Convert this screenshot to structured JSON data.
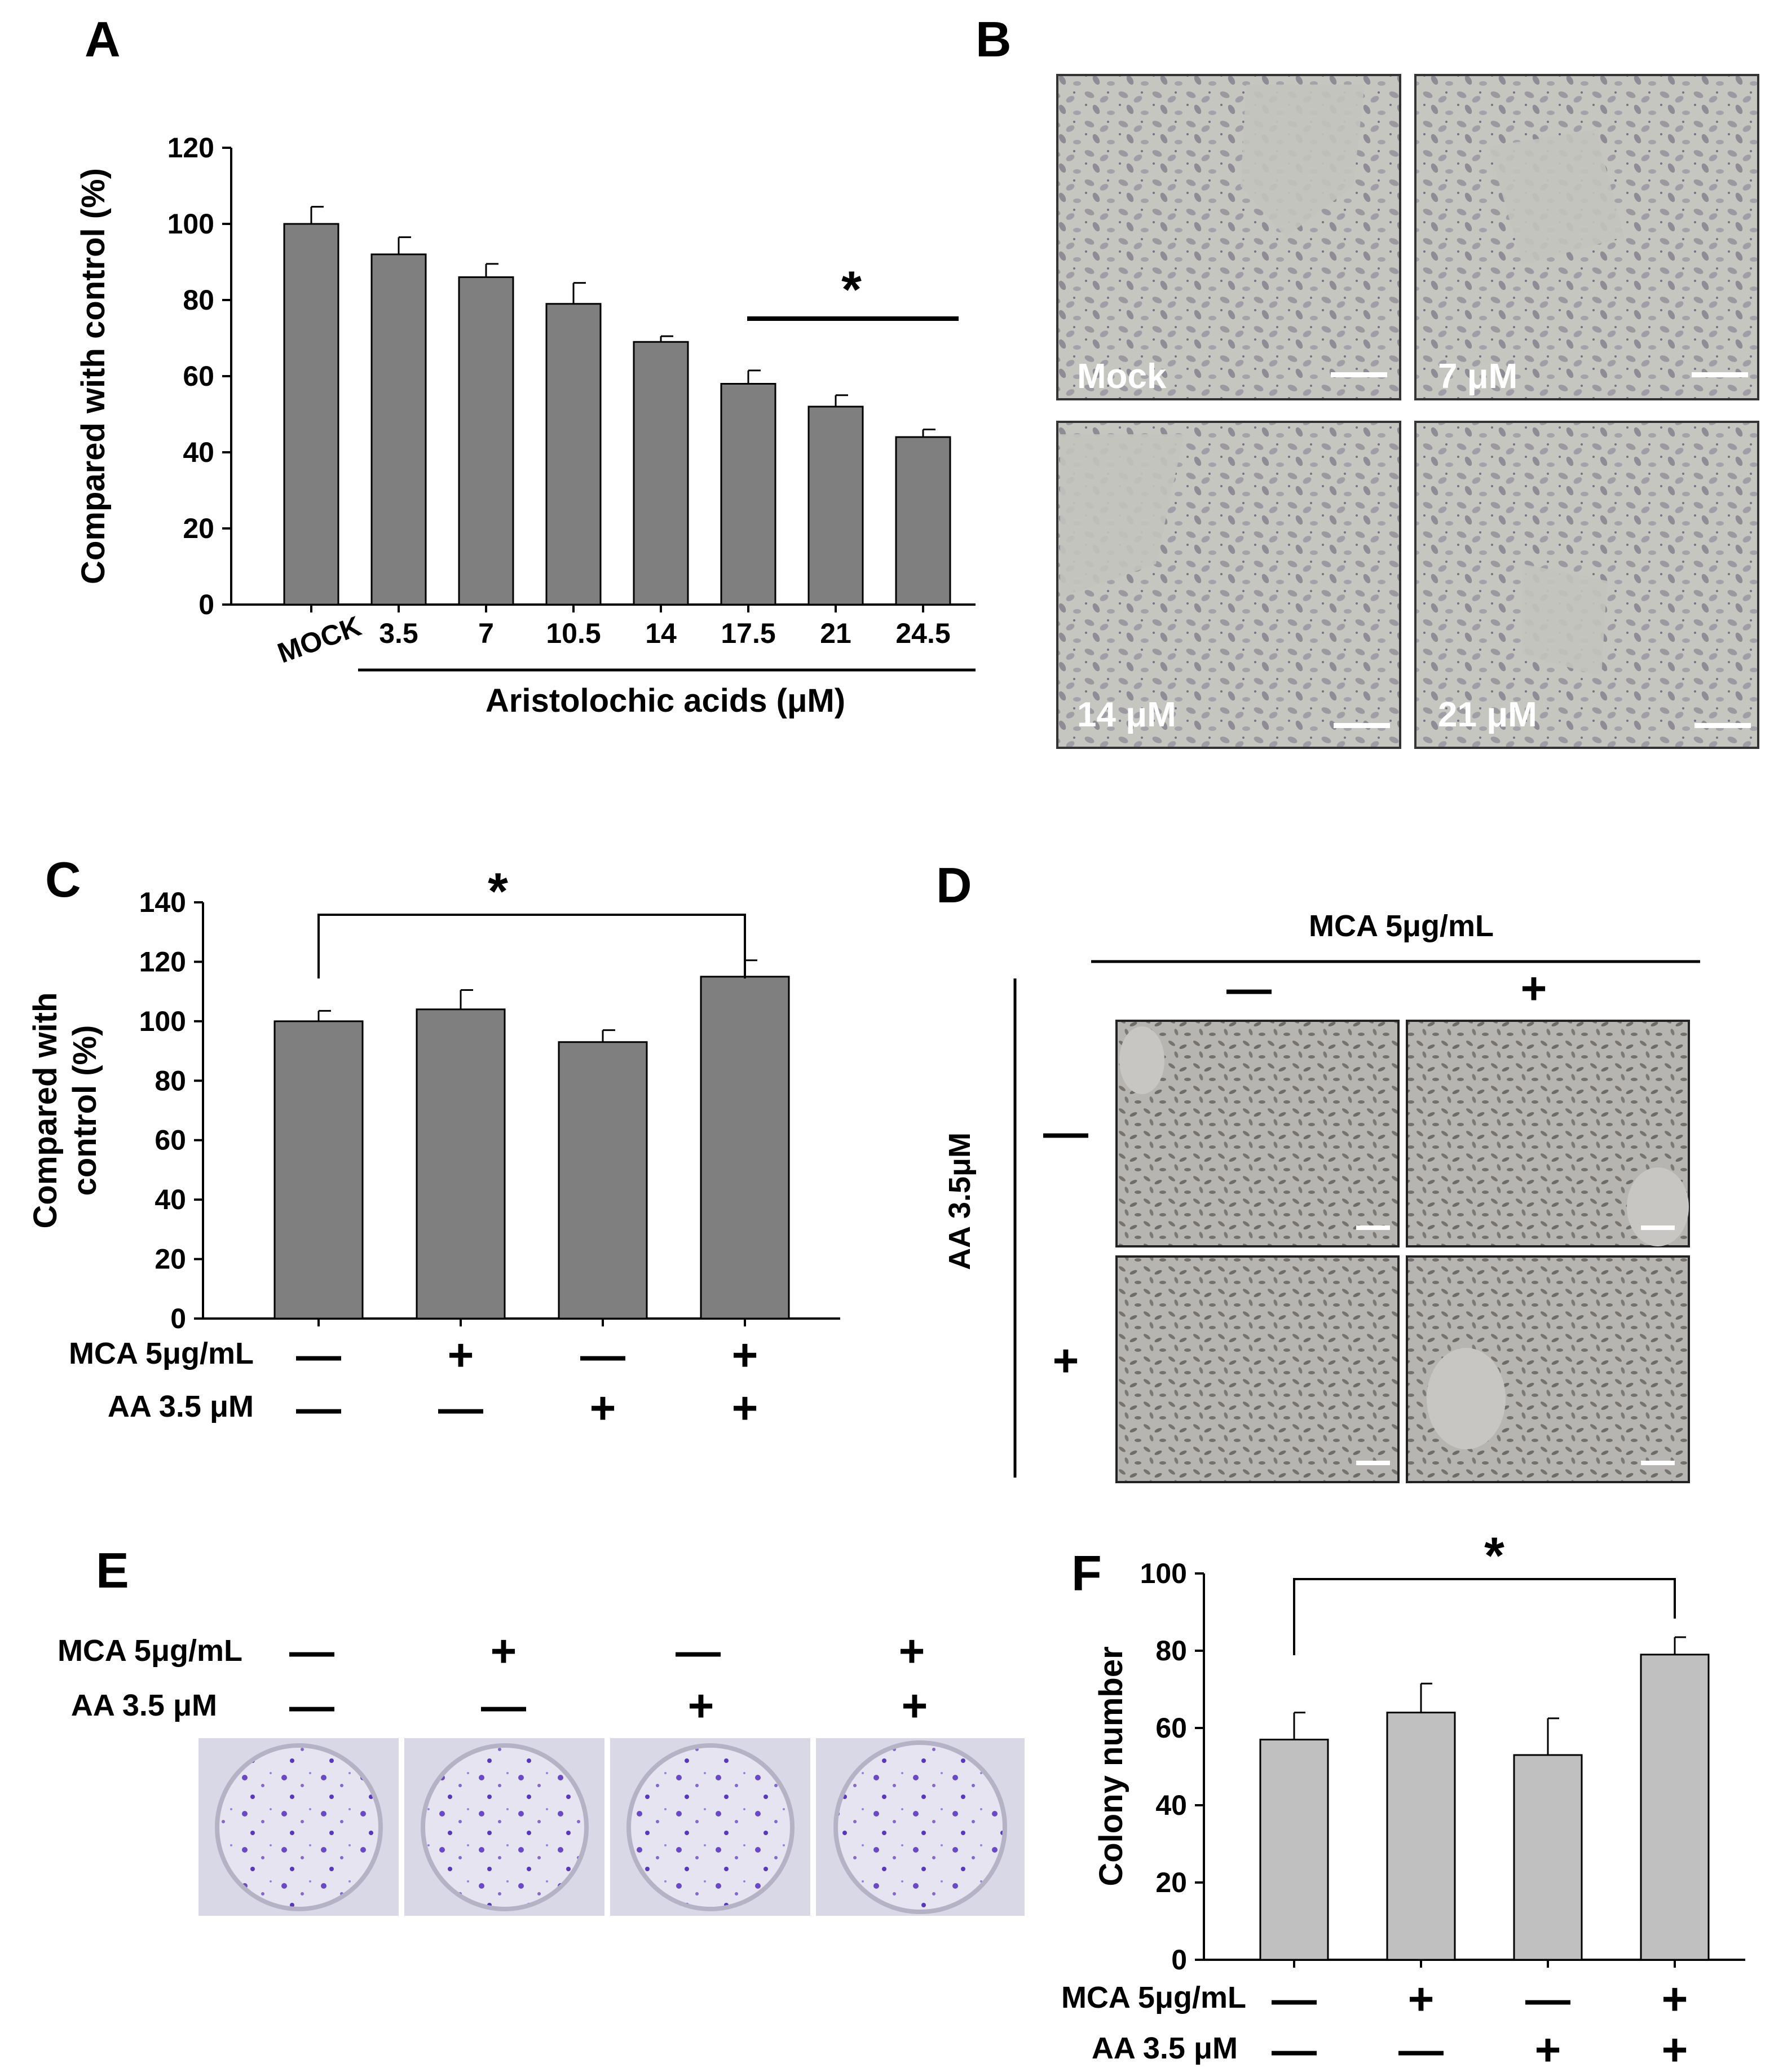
{
  "panels": {
    "a": "A",
    "b": "B",
    "c": "C",
    "d": "D",
    "e": "E",
    "f": "F"
  },
  "chart_data": [
    {
      "panel": "A",
      "type": "bar",
      "ylabel": "Compared with control (%)",
      "xlabel": "Aristolochic acids (μM)",
      "categories": [
        "MOCK",
        "3.5",
        "7",
        "10.5",
        "14",
        "17.5",
        "21",
        "24.5"
      ],
      "values": [
        100,
        92,
        86,
        79,
        69,
        58,
        52,
        44
      ],
      "errors": [
        4.5,
        4.5,
        3.5,
        5.5,
        1.5,
        3.5,
        3,
        2
      ],
      "ylim": [
        0,
        120
      ],
      "yticks": [
        0,
        20,
        40,
        60,
        80,
        100,
        120
      ],
      "bar_color": "#7f7f7f",
      "significance": "*"
    },
    {
      "panel": "C",
      "type": "bar",
      "ylabel": [
        "Compared with",
        "control (%)"
      ],
      "values": [
        100,
        104,
        93,
        115
      ],
      "errors": [
        3.5,
        6.5,
        4,
        5.5
      ],
      "ylim": [
        0,
        140
      ],
      "yticks": [
        0,
        20,
        40,
        60,
        80,
        100,
        120,
        140
      ],
      "bar_color": "#7f7f7f",
      "conditions": [
        {
          "label": "MCA 5μg/mL",
          "signs": [
            "—",
            "+",
            "—",
            "+"
          ]
        },
        {
          "label": "AA 3.5 μM",
          "signs": [
            "—",
            "—",
            "+",
            "+"
          ]
        }
      ],
      "significance": "*"
    },
    {
      "panel": "F",
      "type": "bar",
      "ylabel": "Colony number",
      "values": [
        57,
        64,
        53,
        79
      ],
      "errors": [
        7,
        7.5,
        9.5,
        4.5
      ],
      "ylim": [
        0,
        100
      ],
      "yticks": [
        0,
        20,
        40,
        60,
        80,
        100
      ],
      "bar_color": "#c0c0c0",
      "conditions": [
        {
          "label": "MCA 5μg/mL",
          "signs": [
            "—",
            "+",
            "—",
            "+"
          ]
        },
        {
          "label": "AA 3.5 μM",
          "signs": [
            "—",
            "—",
            "+",
            "+"
          ]
        }
      ],
      "significance": "*"
    }
  ],
  "micrographs_b": [
    "Mock",
    "7 μM",
    "14 μM",
    "21 μM"
  ],
  "panel_d": {
    "top_label": "MCA 5μg/mL",
    "side_label": "AA 3.5μM",
    "col_signs": [
      "—",
      "+"
    ],
    "row_signs": [
      "—",
      "+"
    ]
  },
  "panel_e": {
    "conditions": [
      {
        "label": "MCA 5μg/mL",
        "signs": [
          "—",
          "+",
          "—",
          "+"
        ]
      },
      {
        "label": "AA 3.5 μM",
        "signs": [
          "—",
          "—",
          "+",
          "+"
        ]
      }
    ]
  },
  "colors": {
    "micrograph_bg": "#c9c9c4",
    "cell": "#8e8b92",
    "colony": "#6a45c8",
    "dish": "#e9e8f2"
  }
}
